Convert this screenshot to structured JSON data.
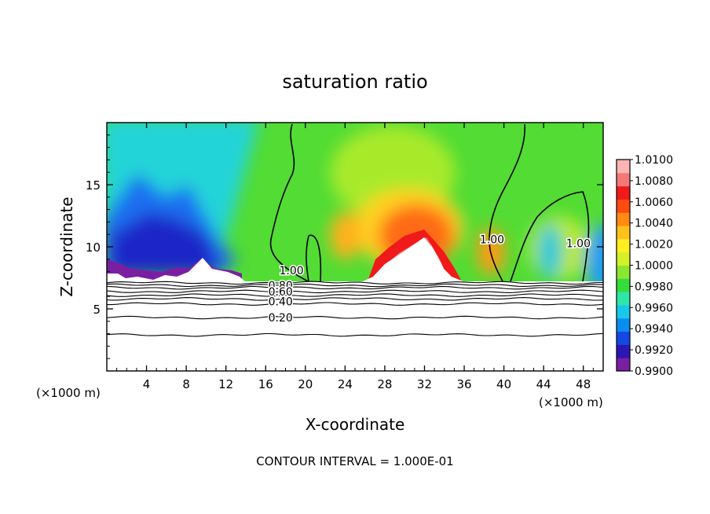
{
  "chart_data": {
    "type": "heatmap",
    "title": "saturation ratio",
    "xlabel": "X-coordinate",
    "ylabel": "Z-coordinate",
    "x_unit_label": "(×1000 m)",
    "x_unit_label_right": "(×1000 m)",
    "footer": "CONTOUR INTERVAL = 1.000E-01",
    "xlim": [
      0,
      50
    ],
    "ylim": [
      0,
      20
    ],
    "x_ticks": [
      4,
      8,
      12,
      16,
      20,
      24,
      28,
      32,
      36,
      40,
      44,
      48
    ],
    "x_tick_labels": [
      "4",
      "8",
      "12",
      "16",
      "20",
      "24",
      "28",
      "32",
      "36",
      "40",
      "44",
      "48"
    ],
    "y_ticks": [
      5,
      10,
      15
    ],
    "y_tick_labels": [
      "5",
      "10",
      "15"
    ],
    "colorbar": {
      "min": 0.99,
      "max": 1.01,
      "tick_labels": [
        "1.0100",
        "1.0080",
        "1.0060",
        "1.0040",
        "1.0020",
        "1.0000",
        "0.9980",
        "0.9960",
        "0.9940",
        "0.9920",
        "0.9900"
      ],
      "colors": [
        "#7a1fa2",
        "#2b16b4",
        "#1448e0",
        "#0a8cf0",
        "#19c8e8",
        "#2ee6a8",
        "#36dc3c",
        "#8ae630",
        "#d4f02a",
        "#ffee20",
        "#ffc21a",
        "#ff8a14",
        "#ff4a10",
        "#f01a1a",
        "#f47878",
        "#fcb4b4"
      ]
    },
    "saturated_layer_top": 7.3,
    "contour_labels": [
      {
        "text": "1.00",
        "x": 18.6,
        "y": 8.1
      },
      {
        "text": "1.00",
        "x": 38.8,
        "y": 10.6
      },
      {
        "text": "1.00",
        "x": 47.5,
        "y": 10.3
      },
      {
        "text": "0.80",
        "x": 17.5,
        "y": 6.9
      },
      {
        "text": "0.60",
        "x": 17.5,
        "y": 6.4
      },
      {
        "text": "0.40",
        "x": 17.5,
        "y": 5.6
      },
      {
        "text": "0.20",
        "x": 17.5,
        "y": 4.3
      }
    ],
    "lower_contour_levels": [
      {
        "z": 7.1
      },
      {
        "z": 6.9
      },
      {
        "z": 6.7
      },
      {
        "z": 6.4
      },
      {
        "z": 6.1
      },
      {
        "z": 5.8
      },
      {
        "z": 5.4
      },
      {
        "z": 4.3
      },
      {
        "z": 2.9
      }
    ]
  }
}
